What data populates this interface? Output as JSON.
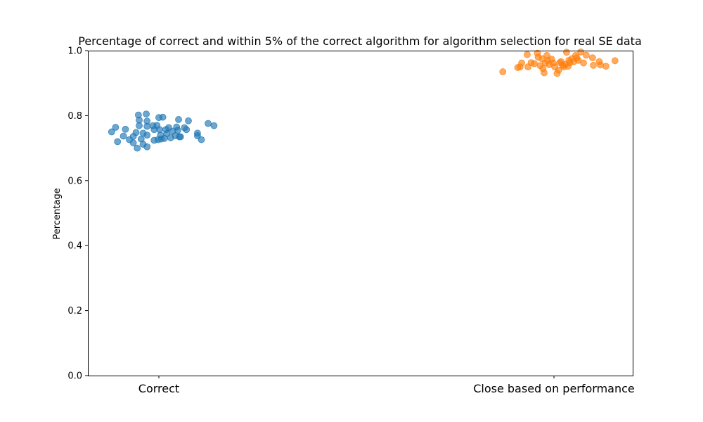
{
  "chart_data": {
    "type": "scatter",
    "title": "Percentage of correct and within 5% of the correct algorithm for algorithm selection for real SE data",
    "xlabel": "",
    "ylabel": "Percentage",
    "categories": [
      "Correct",
      "Close based on performance"
    ],
    "ylim": [
      0,
      1
    ],
    "yticks": [
      "0.0",
      "0.2",
      "0.4",
      "0.6",
      "0.8",
      "1.0"
    ],
    "grid": false,
    "legend": "none",
    "series": [
      {
        "color": "#1f77b4",
        "points": [
          {
            "x": -0.12,
            "y": 0.75
          },
          {
            "x": -0.11,
            "y": 0.764
          },
          {
            "x": -0.105,
            "y": 0.72
          },
          {
            "x": -0.09,
            "y": 0.737
          },
          {
            "x": -0.085,
            "y": 0.758
          },
          {
            "x": -0.075,
            "y": 0.726
          },
          {
            "x": -0.065,
            "y": 0.736
          },
          {
            "x": -0.065,
            "y": 0.716
          },
          {
            "x": -0.058,
            "y": 0.748
          },
          {
            "x": -0.055,
            "y": 0.7
          },
          {
            "x": -0.052,
            "y": 0.802
          },
          {
            "x": -0.05,
            "y": 0.786
          },
          {
            "x": -0.05,
            "y": 0.769
          },
          {
            "x": -0.045,
            "y": 0.728
          },
          {
            "x": -0.04,
            "y": 0.712
          },
          {
            "x": -0.04,
            "y": 0.746
          },
          {
            "x": -0.032,
            "y": 0.805
          },
          {
            "x": -0.03,
            "y": 0.783
          },
          {
            "x": -0.03,
            "y": 0.767
          },
          {
            "x": -0.03,
            "y": 0.74
          },
          {
            "x": -0.03,
            "y": 0.704
          },
          {
            "x": -0.015,
            "y": 0.769
          },
          {
            "x": -0.012,
            "y": 0.757
          },
          {
            "x": -0.012,
            "y": 0.724
          },
          {
            "x": -0.005,
            "y": 0.77
          },
          {
            "x": -0.002,
            "y": 0.726
          },
          {
            "x": 0.0,
            "y": 0.794
          },
          {
            "x": 0.002,
            "y": 0.757
          },
          {
            "x": 0.004,
            "y": 0.74
          },
          {
            "x": 0.006,
            "y": 0.728
          },
          {
            "x": 0.01,
            "y": 0.795
          },
          {
            "x": 0.014,
            "y": 0.73
          },
          {
            "x": 0.018,
            "y": 0.757
          },
          {
            "x": 0.02,
            "y": 0.745
          },
          {
            "x": 0.025,
            "y": 0.763
          },
          {
            "x": 0.03,
            "y": 0.732
          },
          {
            "x": 0.035,
            "y": 0.752
          },
          {
            "x": 0.042,
            "y": 0.738
          },
          {
            "x": 0.045,
            "y": 0.765
          },
          {
            "x": 0.048,
            "y": 0.755
          },
          {
            "x": 0.05,
            "y": 0.788
          },
          {
            "x": 0.052,
            "y": 0.735
          },
          {
            "x": 0.055,
            "y": 0.735
          },
          {
            "x": 0.065,
            "y": 0.763
          },
          {
            "x": 0.07,
            "y": 0.757
          },
          {
            "x": 0.075,
            "y": 0.784
          },
          {
            "x": 0.098,
            "y": 0.746
          },
          {
            "x": 0.098,
            "y": 0.738
          },
          {
            "x": 0.108,
            "y": 0.726
          },
          {
            "x": 0.125,
            "y": 0.776
          },
          {
            "x": 0.14,
            "y": 0.769
          }
        ]
      },
      {
        "color": "#ff7f0e",
        "points": [
          {
            "x": -0.13,
            "y": 0.935
          },
          {
            "x": -0.092,
            "y": 0.948
          },
          {
            "x": -0.086,
            "y": 0.95
          },
          {
            "x": -0.082,
            "y": 0.962
          },
          {
            "x": -0.068,
            "y": 0.988
          },
          {
            "x": -0.066,
            "y": 0.95
          },
          {
            "x": -0.058,
            "y": 0.963
          },
          {
            "x": -0.05,
            "y": 0.96
          },
          {
            "x": -0.042,
            "y": 0.992
          },
          {
            "x": -0.04,
            "y": 0.98
          },
          {
            "x": -0.035,
            "y": 0.954
          },
          {
            "x": -0.03,
            "y": 0.975
          },
          {
            "x": -0.028,
            "y": 0.945
          },
          {
            "x": -0.025,
            "y": 0.932
          },
          {
            "x": -0.022,
            "y": 0.962
          },
          {
            "x": -0.018,
            "y": 0.985
          },
          {
            "x": -0.016,
            "y": 0.97
          },
          {
            "x": -0.012,
            "y": 0.957
          },
          {
            "x": -0.006,
            "y": 0.974
          },
          {
            "x": -0.002,
            "y": 0.962
          },
          {
            "x": 0.002,
            "y": 0.95
          },
          {
            "x": 0.008,
            "y": 0.93
          },
          {
            "x": 0.012,
            "y": 0.94
          },
          {
            "x": 0.015,
            "y": 0.963
          },
          {
            "x": 0.018,
            "y": 0.966
          },
          {
            "x": 0.022,
            "y": 0.955
          },
          {
            "x": 0.025,
            "y": 0.95
          },
          {
            "x": 0.028,
            "y": 0.957
          },
          {
            "x": 0.032,
            "y": 0.995
          },
          {
            "x": 0.036,
            "y": 0.952
          },
          {
            "x": 0.038,
            "y": 0.97
          },
          {
            "x": 0.04,
            "y": 0.962
          },
          {
            "x": 0.045,
            "y": 0.975
          },
          {
            "x": 0.05,
            "y": 0.966
          },
          {
            "x": 0.055,
            "y": 0.985
          },
          {
            "x": 0.058,
            "y": 0.978
          },
          {
            "x": 0.062,
            "y": 0.97
          },
          {
            "x": 0.068,
            "y": 0.996
          },
          {
            "x": 0.075,
            "y": 0.962
          },
          {
            "x": 0.082,
            "y": 0.986
          },
          {
            "x": 0.098,
            "y": 0.978
          },
          {
            "x": 0.1,
            "y": 0.955
          },
          {
            "x": 0.115,
            "y": 0.966
          },
          {
            "x": 0.118,
            "y": 0.956
          },
          {
            "x": 0.132,
            "y": 0.952
          },
          {
            "x": 0.155,
            "y": 0.969
          }
        ]
      }
    ]
  }
}
